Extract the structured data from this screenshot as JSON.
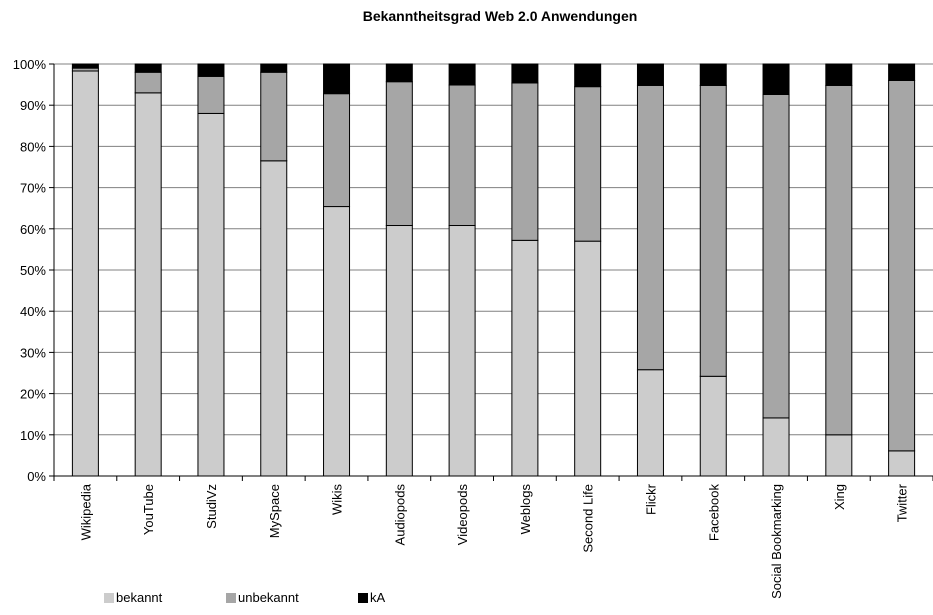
{
  "chart_data": {
    "type": "bar",
    "stacked": true,
    "title": "Bekanntheitsgrad Web 2.0 Anwendungen",
    "xlabel": "",
    "ylabel": "",
    "ylim": [
      0,
      100
    ],
    "yticks": [
      "0%",
      "10%",
      "20%",
      "30%",
      "40%",
      "50%",
      "60%",
      "70%",
      "80%",
      "90%",
      "100%"
    ],
    "grid": true,
    "legend_position": "bottom-left",
    "categories": [
      "Wikipedia",
      "YouTube",
      "StudiVz",
      "MySpace",
      "Wikis",
      "Audiopods",
      "Videopods",
      "Weblogs",
      "Second Life",
      "Flickr",
      "Facebook",
      "Social Bookmarking",
      "Xing",
      "Twitter"
    ],
    "series": [
      {
        "name": "bekannt",
        "color": "#cccccc",
        "values": [
          98.3,
          93,
          88,
          76.5,
          65.4,
          60.8,
          60.8,
          57.2,
          57,
          25.8,
          24.2,
          14.1,
          10,
          6.1
        ]
      },
      {
        "name": "unbekannt",
        "color": "#a6a6a6",
        "values": [
          0.7,
          5,
          9,
          21.5,
          27.4,
          34.9,
          34.1,
          38.2,
          37.5,
          69,
          70.6,
          78.5,
          84.8,
          89.9
        ]
      },
      {
        "name": "kA",
        "color": "#000000",
        "values": [
          1,
          2,
          3,
          2,
          7.2,
          4.3,
          5.1,
          4.6,
          5.5,
          5.2,
          5.2,
          7.4,
          5.2,
          4
        ]
      }
    ]
  }
}
